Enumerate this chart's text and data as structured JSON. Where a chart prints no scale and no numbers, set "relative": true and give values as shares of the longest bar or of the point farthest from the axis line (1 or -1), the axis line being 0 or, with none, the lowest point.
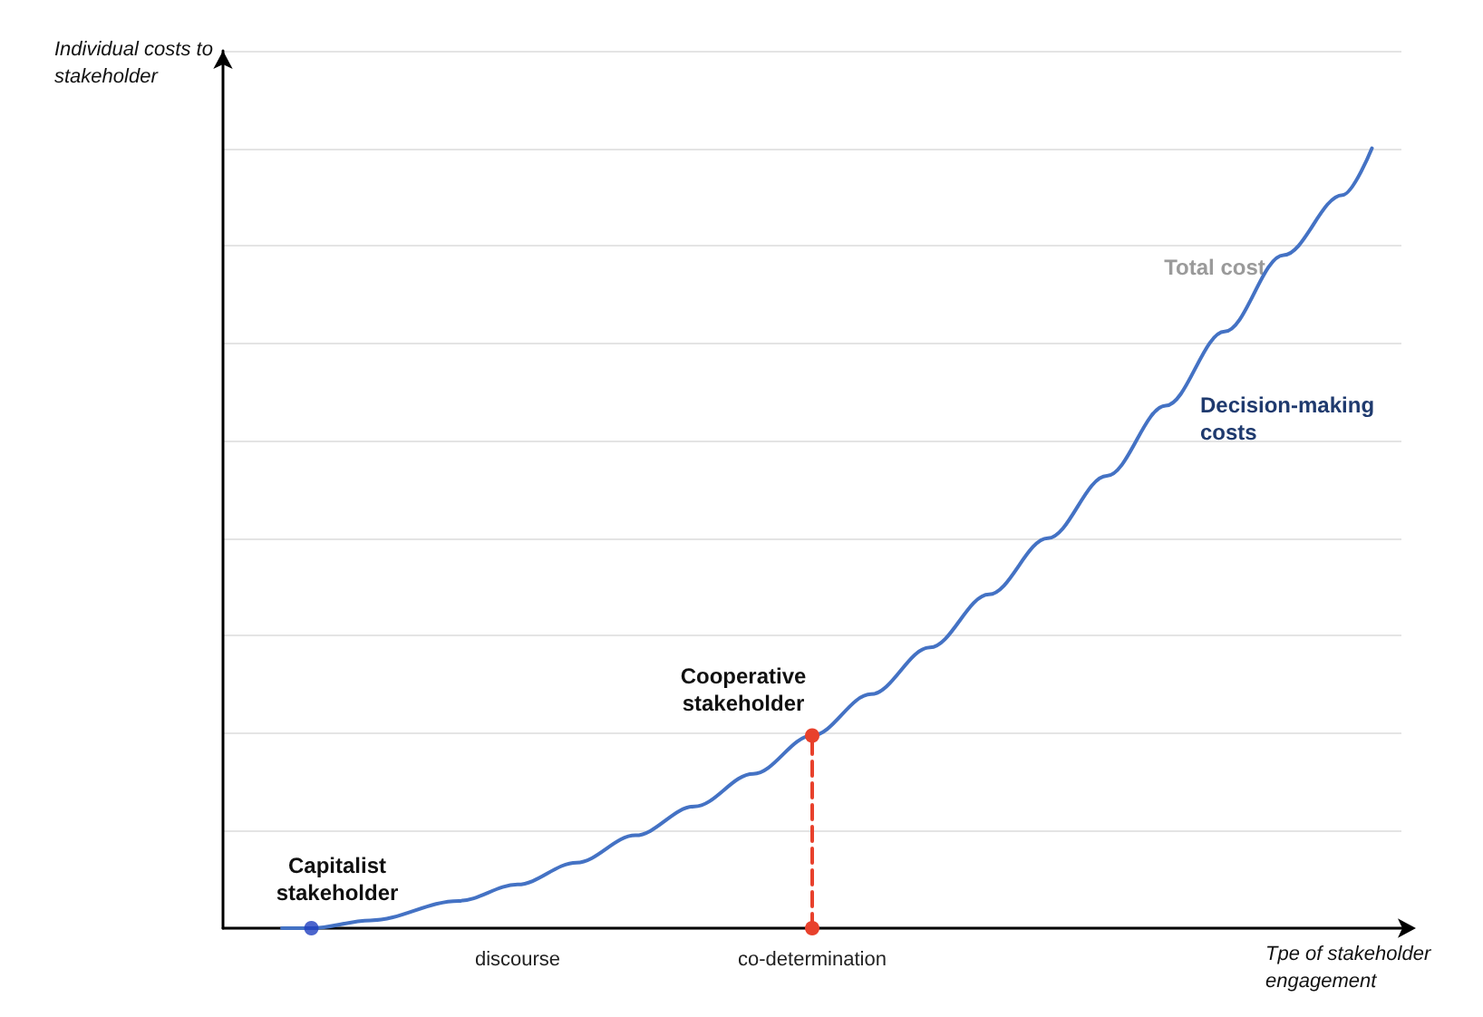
{
  "chart_data": {
    "type": "line",
    "relative": true,
    "xlabel": "Tpe of stakeholder engagement",
    "ylabel": "Individual costs to stakeholder",
    "categories": [
      null,
      null,
      null,
      null,
      null,
      null,
      null,
      null,
      null,
      null,
      "discourse",
      null,
      null,
      null,
      null,
      null,
      null,
      null,
      null,
      null,
      "co-determination",
      null,
      null,
      null,
      null,
      null,
      null,
      null,
      null,
      null,
      null,
      null,
      null,
      null,
      null,
      null,
      null,
      null,
      null,
      null,
      null
    ],
    "series": [
      {
        "color": "#4472c4",
        "marker": "none",
        "values": [
          null,
          null,
          0,
          0,
          null,
          0.01,
          null,
          null,
          0.035,
          null,
          0.056,
          null,
          0.084,
          null,
          0.119,
          null,
          0.156,
          null,
          0.198,
          null,
          0.247,
          null,
          0.3,
          null,
          0.36,
          null,
          0.428,
          null,
          0.5,
          null,
          0.58,
          null,
          0.67,
          null,
          0.765,
          null,
          0.863,
          null,
          0.94,
          1,
          null
        ]
      },
      {
        "type": "scatter",
        "color": "#1f3fbf",
        "marker": "circle",
        "values": [
          null,
          null,
          null,
          0,
          null,
          null,
          null,
          null,
          null,
          null,
          null,
          null,
          null,
          null,
          null,
          null,
          null,
          null,
          null,
          null,
          null,
          null,
          null,
          null,
          null,
          null,
          null,
          null,
          null,
          null,
          null,
          null,
          null,
          null,
          null,
          null,
          null,
          null,
          null,
          null,
          null
        ]
      },
      {
        "type": "line",
        "color": "#e8412c",
        "marker": "circle",
        "line_style": "dashed",
        "x": [
          "co-determination",
          "co-determination"
        ],
        "values": [
          0,
          0.247
        ]
      }
    ],
    "annotations": [
      "Capitalist stakeholder",
      {
        "text": "Cooperative stakeholder",
        "x": "co-determination",
        "y": 0.247
      },
      "Total cost",
      "Decision-making costs"
    ],
    "grid": "y"
  }
}
